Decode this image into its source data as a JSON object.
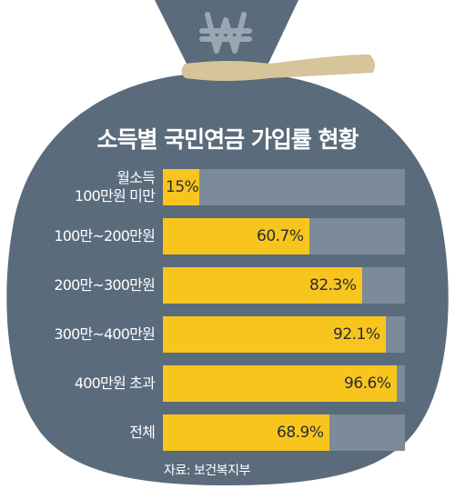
{
  "chart_data": {
    "type": "bar",
    "orientation": "horizontal",
    "title": "소득별 국민연금 가입률 현황",
    "categories": [
      "월소득 100만원 미만",
      "100만~200만원",
      "200만~300만원",
      "300만~400만원",
      "400만원 초과",
      "전체"
    ],
    "category_lines": [
      [
        "월소득",
        "100만원 미만"
      ],
      [
        "100만~200만원"
      ],
      [
        "200만~300만원"
      ],
      [
        "300만~400만원"
      ],
      [
        "400만원 초과"
      ],
      [
        "전체"
      ]
    ],
    "values": [
      15,
      60.7,
      82.3,
      92.1,
      96.6,
      68.9
    ],
    "value_labels": [
      "15%",
      "60.7%",
      "82.3%",
      "92.1%",
      "96.6%",
      "68.9%"
    ],
    "xlim": [
      0,
      100
    ],
    "source": "자료: 보건복지부"
  },
  "icon": "won-sign-icon",
  "colors": {
    "bag": "#5a6b7b",
    "track": "#7c8b99",
    "fill": "#f8c51f",
    "tie": "#d6c49a",
    "symbol": "#9aa7b3"
  }
}
